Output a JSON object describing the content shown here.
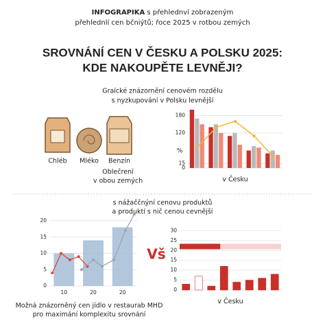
{
  "header": {
    "bold": "INFOGRAPIKA",
    "rest": "s přehlednví zobrazeným",
    "line2": "přehlednlí cen bčniýtů; řoce 2025 v rotbou zemých"
  },
  "title": [
    "SROVNÁNÍ CEN V ČESKU A POLSKU 2025:",
    "KDE NAKOUPĚTE LEVNĚJI?"
  ],
  "section1": {
    "caption": [
      "Graícké znázornění cenovém rozdělu",
      "s nyzkupování v Polsku levnější"
    ],
    "items": [
      "Chléb",
      "Mléko",
      "Benzín"
    ],
    "note": [
      "Oblečrení",
      "v obou zemých"
    ]
  },
  "section2": {
    "caption": [
      "s nážaččnýní cenovu produktů",
      "a produktí s nič cenou cevnější"
    ]
  },
  "footer": [
    "Možná znázorněný cen jídlo v restaurab MHD",
    "pro maximání komplexitu srovnání"
  ],
  "chart_data": [
    {
      "type": "bar",
      "xlabel": "v Česku",
      "ylabel": "%",
      "categories": [
        null,
        null,
        null,
        null,
        null
      ],
      "series": [
        {
          "kind": "bar",
          "color": "#c8302a",
          "values": [
            200,
            140,
            110,
            60,
            50
          ]
        },
        {
          "kind": "bar",
          "color": "#b9b9b9",
          "values": [
            170,
            150,
            120,
            75,
            60
          ]
        },
        {
          "kind": "bar",
          "color": "#ef8a78",
          "values": [
            150,
            120,
            80,
            70,
            45
          ]
        },
        {
          "kind": "line",
          "color": "#f2b630",
          "values": [
            70,
            140,
            160,
            110,
            40
          ]
        }
      ],
      "ylim": [
        0,
        200
      ],
      "yticks": [
        0,
        15,
        120,
        180
      ],
      "grid": true
    },
    {
      "type": "bar",
      "categories": [
        "10",
        "20",
        "20"
      ],
      "values": [
        10,
        14,
        18
      ],
      "color": "#9fb8d3",
      "lines": [
        {
          "color": "#d9473a",
          "x": [
            0.1,
            0.4,
            0.7,
            1.0,
            1.3
          ],
          "values": [
            4,
            10,
            8,
            9,
            6
          ]
        },
        {
          "color": "#9aa6b5",
          "x": [
            1.1,
            1.5,
            1.8,
            2.2,
            2.6,
            2.9
          ],
          "values": [
            5,
            8,
            6,
            8,
            17,
            22
          ]
        }
      ],
      "xlim": [
        0,
        3
      ],
      "ylim": [
        0,
        20
      ],
      "yticks": [
        0,
        5,
        10,
        15,
        20
      ],
      "grid": true
    },
    {
      "type": "bar",
      "badge": "Vš",
      "xlabel": "v Česku",
      "categories": [
        null,
        null,
        null,
        null,
        null,
        null,
        null,
        null
      ],
      "values": [
        3,
        7,
        2,
        12,
        4,
        5,
        6,
        8
      ],
      "colors": [
        "#c8302a",
        "#ffffff",
        "#c8302a",
        "#c8302a",
        "#c8302a",
        "#c8302a",
        "#c8302a",
        "#c8302a"
      ],
      "reference": 22,
      "ylim": [
        0,
        35
      ],
      "yticks": [
        0,
        5,
        10,
        15,
        20,
        25,
        30
      ],
      "grid": true
    }
  ]
}
